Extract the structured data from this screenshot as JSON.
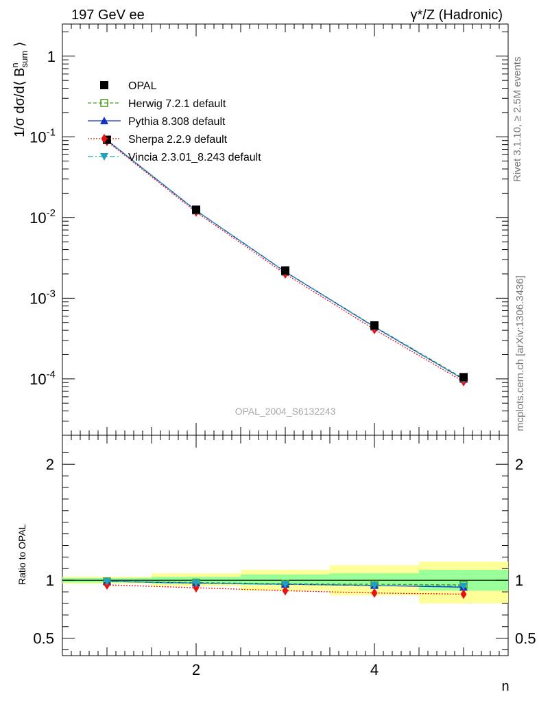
{
  "header": {
    "left": "197 GeV ee",
    "right": "γ*/Z (Hadronic)"
  },
  "side": {
    "rivet": "Rivet 3.1.10, ≥ 2.5M events",
    "mcplots": "mcplots.cern.ch [arXiv:1306.3436]"
  },
  "watermark": "OPAL_2004_S6132243",
  "colors": {
    "herwig": "#4a9a1f",
    "pythia": "#1030c8",
    "sherpa": "#e81010",
    "vincia": "#20a0c0",
    "band_inner": "#99ff99",
    "band_outer": "#ffff99"
  },
  "chart_data": [
    {
      "type": "line",
      "title": "",
      "ylabel": "1/σ dσ/d⟨ B^n_sum ⟩",
      "xlabel": "n",
      "yscale": "log",
      "xlim": [
        0.5,
        5.5
      ],
      "ylim": [
        2e-05,
        2.5
      ],
      "y_ticks": [
        "1",
        "10^-1",
        "10^-2",
        "10^-3",
        "10^-4"
      ],
      "legend": "top-left",
      "x": [
        1,
        2,
        3,
        4,
        5
      ],
      "series": [
        {
          "name": "OPAL",
          "key": "data",
          "values": [
            0.092,
            0.0125,
            0.0022,
            0.00046,
            0.000105
          ]
        },
        {
          "name": "Herwig 7.2.1 default",
          "key": "herwig",
          "values": [
            0.091,
            0.0122,
            0.00213,
            0.000445,
            0.000101
          ]
        },
        {
          "name": "Pythia 8.308 default",
          "key": "pythia",
          "values": [
            0.091,
            0.0122,
            0.00212,
            0.00044,
            9.85e-05
          ]
        },
        {
          "name": "Sherpa 2.2.9 default",
          "key": "sherpa",
          "values": [
            0.088,
            0.0117,
            0.002,
            0.00041,
            9.25e-05
          ]
        },
        {
          "name": "Vincia 2.3.01_8.243 default",
          "key": "vincia",
          "values": [
            0.091,
            0.0122,
            0.00212,
            0.00044,
            9.85e-05
          ]
        }
      ]
    },
    {
      "type": "line",
      "title": "",
      "ylabel": "Ratio to OPAL",
      "xlabel": "n",
      "xlim": [
        0.5,
        5.5
      ],
      "ylim": [
        0.35,
        2.25
      ],
      "x_ticks": [
        "2",
        "4"
      ],
      "y_ticks": [
        "0.5",
        "1",
        "2"
      ],
      "x": [
        1,
        2,
        3,
        4,
        5
      ],
      "bands": {
        "inner": [
          [
            0.98,
            1.02
          ],
          [
            0.97,
            1.03
          ],
          [
            0.96,
            1.05
          ],
          [
            0.96,
            1.06
          ],
          [
            0.91,
            1.09
          ]
        ],
        "outer": [
          [
            0.97,
            1.03
          ],
          [
            0.95,
            1.06
          ],
          [
            0.91,
            1.09
          ],
          [
            0.87,
            1.13
          ],
          [
            0.8,
            1.16
          ]
        ]
      },
      "series": [
        {
          "name": "Herwig 7.2.1 default",
          "key": "herwig",
          "values": [
            0.99,
            0.98,
            0.97,
            0.965,
            0.96
          ]
        },
        {
          "name": "Pythia 8.308 default",
          "key": "pythia",
          "values": [
            0.99,
            0.975,
            0.965,
            0.955,
            0.94
          ]
        },
        {
          "name": "Sherpa 2.2.9 default",
          "key": "sherpa",
          "values": [
            0.96,
            0.935,
            0.91,
            0.89,
            0.88
          ]
        },
        {
          "name": "Vincia 2.3.01_8.243 default",
          "key": "vincia",
          "values": [
            0.99,
            0.975,
            0.965,
            0.955,
            0.95
          ]
        }
      ]
    }
  ]
}
